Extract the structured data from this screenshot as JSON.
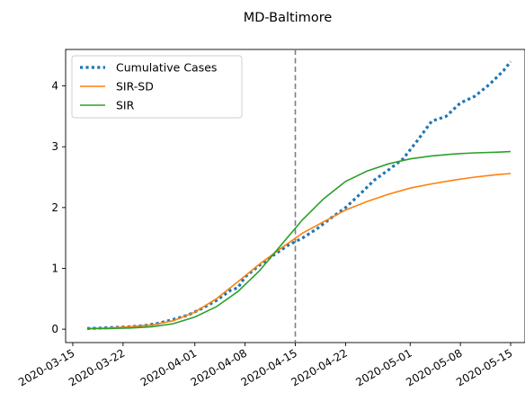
{
  "chart_data": {
    "type": "line",
    "title": "MD-Baltimore",
    "xlabel": "",
    "ylabel": "",
    "x_axis": {
      "type": "date",
      "range": [
        "2020-03-14",
        "2020-05-17"
      ],
      "ticks": [
        "2020-03-15",
        "2020-03-22",
        "2020-04-01",
        "2020-04-08",
        "2020-04-15",
        "2020-04-22",
        "2020-05-01",
        "2020-05-08",
        "2020-05-15"
      ]
    },
    "y_axis": {
      "range": [
        -0.22,
        4.6
      ],
      "ticks": [
        "0",
        "1",
        "2",
        "3",
        "4"
      ]
    },
    "grid": false,
    "legend_position": "top-left",
    "vline": {
      "x": "2020-04-15",
      "color": "#7f7f7f",
      "style": "dashed"
    },
    "series": [
      {
        "name": "Cumulative Cases",
        "color": "#1f77b4",
        "style": "dotted",
        "points": [
          [
            "2020-03-17",
            0.01
          ],
          [
            "2020-03-19",
            0.02
          ],
          [
            "2020-03-21",
            0.03
          ],
          [
            "2020-03-23",
            0.04
          ],
          [
            "2020-03-25",
            0.06
          ],
          [
            "2020-03-27",
            0.1
          ],
          [
            "2020-03-29",
            0.16
          ],
          [
            "2020-03-31",
            0.23
          ],
          [
            "2020-04-02",
            0.34
          ],
          [
            "2020-04-04",
            0.47
          ],
          [
            "2020-04-06",
            0.64
          ],
          [
            "2020-04-07",
            0.68
          ],
          [
            "2020-04-08",
            0.86
          ],
          [
            "2020-04-10",
            1.05
          ],
          [
            "2020-04-12",
            1.22
          ],
          [
            "2020-04-14",
            1.38
          ],
          [
            "2020-04-16",
            1.5
          ],
          [
            "2020-04-18",
            1.65
          ],
          [
            "2020-04-20",
            1.83
          ],
          [
            "2020-04-22",
            2.0
          ],
          [
            "2020-04-24",
            2.22
          ],
          [
            "2020-04-26",
            2.45
          ],
          [
            "2020-04-28",
            2.62
          ],
          [
            "2020-04-30",
            2.8
          ],
          [
            "2020-05-02",
            3.1
          ],
          [
            "2020-05-04",
            3.42
          ],
          [
            "2020-05-06",
            3.5
          ],
          [
            "2020-05-08",
            3.72
          ],
          [
            "2020-05-10",
            3.83
          ],
          [
            "2020-05-12",
            4.02
          ],
          [
            "2020-05-14",
            4.25
          ],
          [
            "2020-05-15",
            4.4
          ]
        ]
      },
      {
        "name": "SIR-SD",
        "color": "#ff7f0e",
        "style": "solid",
        "points": [
          [
            "2020-03-17",
            0.01
          ],
          [
            "2020-03-20",
            0.02
          ],
          [
            "2020-03-23",
            0.04
          ],
          [
            "2020-03-26",
            0.07
          ],
          [
            "2020-03-29",
            0.14
          ],
          [
            "2020-04-01",
            0.28
          ],
          [
            "2020-04-04",
            0.5
          ],
          [
            "2020-04-07",
            0.78
          ],
          [
            "2020-04-10",
            1.07
          ],
          [
            "2020-04-13",
            1.33
          ],
          [
            "2020-04-16",
            1.58
          ],
          [
            "2020-04-19",
            1.77
          ],
          [
            "2020-04-22",
            1.96
          ],
          [
            "2020-04-25",
            2.1
          ],
          [
            "2020-04-28",
            2.22
          ],
          [
            "2020-05-01",
            2.32
          ],
          [
            "2020-05-04",
            2.39
          ],
          [
            "2020-05-07",
            2.45
          ],
          [
            "2020-05-10",
            2.5
          ],
          [
            "2020-05-13",
            2.54
          ],
          [
            "2020-05-15",
            2.56
          ]
        ]
      },
      {
        "name": "SIR",
        "color": "#2ca02c",
        "style": "solid",
        "points": [
          [
            "2020-03-17",
            0.01
          ],
          [
            "2020-03-20",
            0.01
          ],
          [
            "2020-03-23",
            0.02
          ],
          [
            "2020-03-26",
            0.04
          ],
          [
            "2020-03-29",
            0.09
          ],
          [
            "2020-04-01",
            0.2
          ],
          [
            "2020-04-04",
            0.37
          ],
          [
            "2020-04-07",
            0.62
          ],
          [
            "2020-04-10",
            0.96
          ],
          [
            "2020-04-13",
            1.38
          ],
          [
            "2020-04-16",
            1.8
          ],
          [
            "2020-04-19",
            2.15
          ],
          [
            "2020-04-22",
            2.43
          ],
          [
            "2020-04-25",
            2.6
          ],
          [
            "2020-04-28",
            2.72
          ],
          [
            "2020-05-01",
            2.8
          ],
          [
            "2020-05-04",
            2.85
          ],
          [
            "2020-05-07",
            2.88
          ],
          [
            "2020-05-10",
            2.9
          ],
          [
            "2020-05-13",
            2.91
          ],
          [
            "2020-05-15",
            2.92
          ]
        ]
      }
    ]
  }
}
